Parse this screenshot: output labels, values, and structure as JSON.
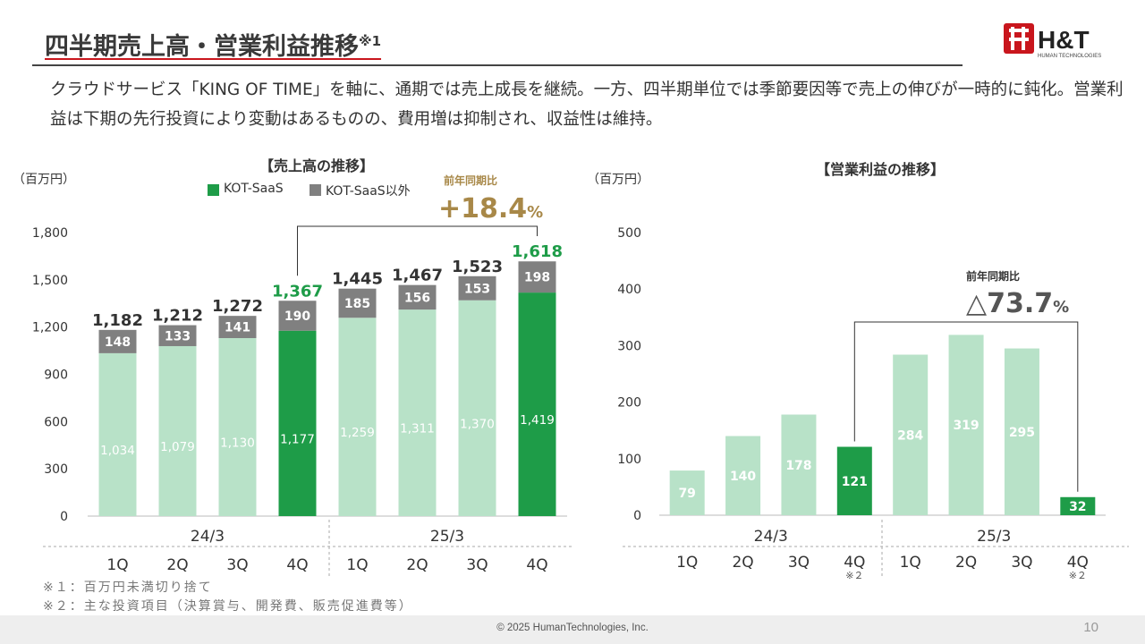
{
  "title": "四半期売上高・営業利益推移",
  "title_note": "※1",
  "lead": "クラウドサービス「KING OF TIME」を軸に、通期では売上成長を継続。一方、四半期単位では季節要因等で売上の伸びが一時的に鈍化。営業利益は下期の先行投資により変動はあるものの、費用増は抑制され、収益性は維持。",
  "logo_text": "H&T",
  "logo_sub": "HUMAN TECHNOLOGIES",
  "colors": {
    "saas": "#1e9c48",
    "saas_light": "#b8e2c8",
    "other": "#808080",
    "accent_gold": "#a88848",
    "grid": "#bbbbbb"
  },
  "chart_data": [
    {
      "type": "bar",
      "title": "【売上高の推移】",
      "unit": "（百万円）",
      "stacked": true,
      "categories": [
        "1Q",
        "2Q",
        "3Q",
        "4Q",
        "1Q",
        "2Q",
        "3Q",
        "4Q"
      ],
      "fiscal_groups": [
        {
          "label": "24/3",
          "quarters": 4
        },
        {
          "label": "25/3",
          "quarters": 4
        }
      ],
      "series": [
        {
          "name": "KOT-SaaS",
          "values": [
            1034,
            1079,
            1130,
            1177,
            1259,
            1311,
            1370,
            1419
          ]
        },
        {
          "name": "KOT-SaaS以外",
          "values": [
            148,
            133,
            141,
            190,
            185,
            156,
            153,
            198
          ]
        }
      ],
      "totals": [
        1182,
        1212,
        1272,
        1367,
        1445,
        1467,
        1523,
        1618
      ],
      "totals_labels": [
        "1,182",
        "1,212",
        "1,272",
        "1,367",
        "1,445",
        "1,467",
        "1,523",
        "1,618"
      ],
      "saas_labels": [
        "1,034",
        "1,079",
        "1,130",
        "1,177",
        "1,259",
        "1,311",
        "1,370",
        "1,419"
      ],
      "highlight_indices": [
        3,
        7
      ],
      "ylim": [
        0,
        1800
      ],
      "yticks": [
        0,
        300,
        600,
        900,
        1200,
        1500,
        1800
      ],
      "ytick_labels": [
        "0",
        "300",
        "600",
        "900",
        "1,200",
        "1,500",
        "1,800"
      ],
      "grid": false,
      "legend": "top",
      "annotation": {
        "label": "前年同期比",
        "value": "+18.4",
        "suffix": "%",
        "from": 3,
        "to": 7
      }
    },
    {
      "type": "bar",
      "title": "【営業利益の推移】",
      "unit": "（百万円）",
      "categories": [
        "1Q",
        "2Q",
        "3Q",
        "4Q",
        "1Q",
        "2Q",
        "3Q",
        "4Q"
      ],
      "category_notes": [
        "",
        "",
        "",
        "※２",
        "",
        "",
        "",
        "※２"
      ],
      "fiscal_groups": [
        {
          "label": "24/3",
          "quarters": 4
        },
        {
          "label": "25/3",
          "quarters": 4
        }
      ],
      "values": [
        79,
        140,
        178,
        121,
        284,
        319,
        295,
        32
      ],
      "highlight_indices": [
        3,
        7
      ],
      "ylim": [
        0,
        500
      ],
      "yticks": [
        0,
        100,
        200,
        300,
        400,
        500
      ],
      "ytick_labels": [
        "0",
        "100",
        "200",
        "300",
        "400",
        "500"
      ],
      "grid": false,
      "annotation": {
        "label": "前年同期比",
        "value": "△73.7",
        "suffix": "%",
        "from": 3,
        "to": 7
      }
    }
  ],
  "notes": [
    "※１：百万円未満切り捨て",
    "※２：主な投資項目（決算賞与、開発費、販売促進費等）"
  ],
  "copyright": "© 2025  HumanTechnologies, Inc.",
  "page_number": "10"
}
